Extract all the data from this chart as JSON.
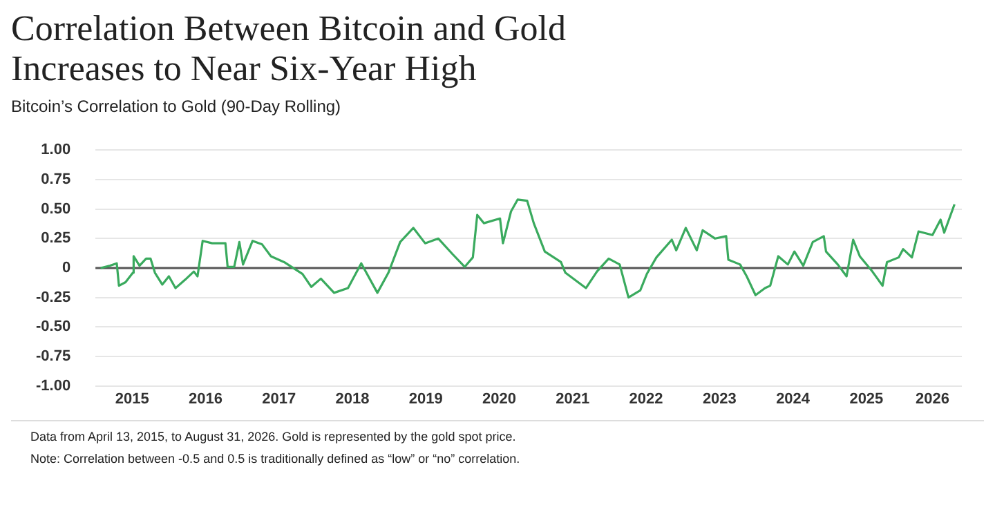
{
  "chart_data": {
    "type": "line",
    "title": "Correlation Between Bitcoin and Gold Increases to Near Six-Year High",
    "subtitle": "Bitcoin’s Correlation to Gold (90-Day Rolling)",
    "x": [
      2015.07,
      2015.2,
      2015.29,
      2015.32,
      2015.41,
      2015.51,
      2015.52,
      2015.6,
      2015.69,
      2015.75,
      2015.81,
      2015.91,
      2016.0,
      2016.09,
      2016.22,
      2016.34,
      2016.39,
      2016.46,
      2016.59,
      2016.77,
      2016.8,
      2016.89,
      2016.96,
      2017.01,
      2017.14,
      2017.27,
      2017.39,
      2017.57,
      2017.82,
      2017.94,
      2018.07,
      2018.25,
      2018.44,
      2018.62,
      2018.84,
      2018.99,
      2019.15,
      2019.33,
      2019.49,
      2019.67,
      2019.86,
      2020.03,
      2020.14,
      2020.2,
      2020.29,
      2020.51,
      2020.55,
      2020.66,
      2020.75,
      2020.88,
      2020.97,
      2021.12,
      2021.34,
      2021.4,
      2021.68,
      2021.83,
      2021.99,
      2022.14,
      2022.26,
      2022.42,
      2022.51,
      2022.64,
      2022.85,
      2022.91,
      2023.04,
      2023.19,
      2023.27,
      2023.44,
      2023.59,
      2023.62,
      2023.78,
      2023.87,
      2023.99,
      2024.12,
      2024.19,
      2024.3,
      2024.43,
      2024.52,
      2024.64,
      2024.77,
      2024.92,
      2024.95,
      2025.11,
      2025.23,
      2025.32,
      2025.41,
      2025.57,
      2025.72,
      2025.78,
      2025.94,
      2026.0,
      2026.12,
      2026.21,
      2026.4,
      2026.51,
      2026.56,
      2026.7
    ],
    "series": [
      {
        "color": "#3aaa5e",
        "values": [
          0,
          0.02,
          0.04,
          -0.15,
          -0.12,
          -0.04,
          0.1,
          0.02,
          0.08,
          0.08,
          -0.04,
          -0.14,
          -0.07,
          -0.17,
          -0.1,
          -0.03,
          -0.07,
          0.23,
          0.21,
          0.21,
          0.01,
          0.01,
          0.22,
          0.03,
          0.23,
          0.2,
          0.1,
          0.05,
          -0.05,
          -0.16,
          -0.09,
          -0.21,
          -0.17,
          0.04,
          -0.21,
          -0.04,
          0.22,
          0.34,
          0.21,
          0.25,
          0.12,
          0.01,
          0.09,
          0.45,
          0.38,
          0.42,
          0.21,
          0.48,
          0.58,
          0.57,
          0.38,
          0.14,
          0.05,
          -0.04,
          -0.17,
          -0.03,
          0.08,
          0.03,
          -0.25,
          -0.19,
          -0.05,
          0.09,
          0.24,
          0.15,
          0.34,
          0.15,
          0.32,
          0.25,
          0.27,
          0.07,
          0.03,
          -0.07,
          -0.23,
          -0.17,
          -0.15,
          0.1,
          0.03,
          0.14,
          0.02,
          0.22,
          0.27,
          0.14,
          0.03,
          -0.07,
          0.24,
          0.1,
          -0.02,
          -0.15,
          0.05,
          0.09,
          0.16,
          0.09,
          0.31,
          0.28,
          0.41,
          0.3,
          0.54
        ]
      }
    ],
    "xlim": [
      2015,
      2026.8
    ],
    "xticks": [
      {
        "value": 2015.5,
        "label": "2015"
      },
      {
        "value": 2016.5,
        "label": "2016"
      },
      {
        "value": 2017.5,
        "label": "2017"
      },
      {
        "value": 2018.5,
        "label": "2018"
      },
      {
        "value": 2019.5,
        "label": "2019"
      },
      {
        "value": 2020.5,
        "label": "2020"
      },
      {
        "value": 2021.5,
        "label": "2021"
      },
      {
        "value": 2022.5,
        "label": "2022"
      },
      {
        "value": 2023.5,
        "label": "2023"
      },
      {
        "value": 2024.5,
        "label": "2024"
      },
      {
        "value": 2025.5,
        "label": "2025"
      },
      {
        "value": 2026.4,
        "label": "2026"
      }
    ],
    "ylim": [
      -1,
      1
    ],
    "yticks": [
      {
        "value": -1,
        "label": "-1.00"
      },
      {
        "value": -0.75,
        "label": "-0.75"
      },
      {
        "value": -0.5,
        "label": "-0.50"
      },
      {
        "value": -0.25,
        "label": "-0.25"
      },
      0,
      {
        "value": 0.25,
        "label": "0.25"
      },
      {
        "value": 0.5,
        "label": "0.50"
      },
      {
        "value": 0.75,
        "label": "0.75"
      },
      {
        "value": 1,
        "label": "1.00"
      }
    ],
    "grid": "y",
    "legend": false,
    "marker": "none",
    "line_style": "solid",
    "ref_lines": [
      {
        "axis": "y",
        "value": 0,
        "color": "#555555"
      }
    ],
    "annotations": [
      "Data from April 13, 2015, to August 31, 2026. Gold is represented by the gold spot price.",
      "Note: Correlation between -0.5 and 0.5 is traditionally defined as “low” or “no” correlation."
    ]
  }
}
